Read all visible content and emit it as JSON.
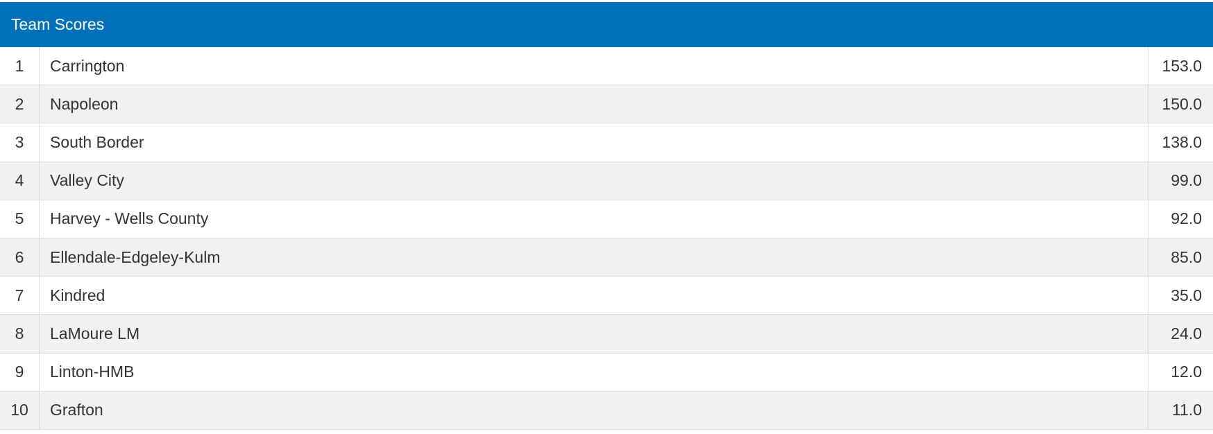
{
  "table": {
    "title": "Team Scores",
    "rows": [
      [
        "1",
        "Carrington",
        "153.0"
      ],
      [
        "2",
        "Napoleon",
        "150.0"
      ],
      [
        "3",
        "South Border",
        "138.0"
      ],
      [
        "4",
        "Valley City",
        "99.0"
      ],
      [
        "5",
        "Harvey - Wells County",
        "92.0"
      ],
      [
        "6",
        "Ellendale-Edgeley-Kulm",
        "85.0"
      ],
      [
        "7",
        "Kindred",
        "35.0"
      ],
      [
        "8",
        "LaMoure LM",
        "24.0"
      ],
      [
        "9",
        "Linton-HMB",
        "12.0"
      ],
      [
        "10",
        "Grafton",
        "11.0"
      ]
    ]
  }
}
